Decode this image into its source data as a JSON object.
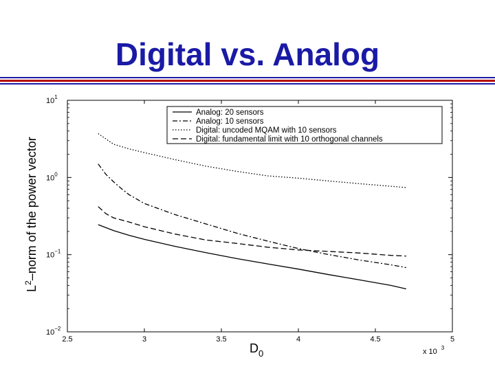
{
  "slide": {
    "title": "Digital vs. Analog",
    "accent_colors": {
      "title": "#1a1aa6",
      "rule_blue": "#1a1aa6",
      "rule_red": "#b30000"
    }
  },
  "chart_data": {
    "type": "line",
    "title": "",
    "xlabel": "D",
    "xlabel_subscript": "0",
    "x_multiplier": "x 10",
    "x_multiplier_exponent": "3",
    "ylabel": "L",
    "ylabel_superscript": "2",
    "ylabel_rest": "–norm of the power vector",
    "xlim": [
      2.5,
      5
    ],
    "ylim": [
      0.01,
      10
    ],
    "yscale": "log",
    "grid": false,
    "legend_position": "top-right",
    "x_ticks": [
      {
        "value": 2.5,
        "label": "2.5"
      },
      {
        "value": 3,
        "label": "3"
      },
      {
        "value": 3.5,
        "label": "3.5"
      },
      {
        "value": 4,
        "label": "4"
      },
      {
        "value": 4.5,
        "label": "4.5"
      },
      {
        "value": 5,
        "label": "5"
      }
    ],
    "y_ticks": [
      {
        "value": 10,
        "base": "10",
        "exp": "1"
      },
      {
        "value": 1,
        "base": "10",
        "exp": "0"
      },
      {
        "value": 0.1,
        "base": "10",
        "exp": "−1"
      },
      {
        "value": 0.01,
        "base": "10",
        "exp": "−2"
      }
    ],
    "series": [
      {
        "name": "Analog: 20 sensors",
        "dash": "solid",
        "x": [
          2.7,
          2.8,
          2.9,
          3.0,
          3.2,
          3.4,
          3.6,
          3.8,
          4.0,
          4.2,
          4.4,
          4.6,
          4.7
        ],
        "values": [
          0.245,
          0.205,
          0.178,
          0.158,
          0.128,
          0.106,
          0.089,
          0.076,
          0.065,
          0.055,
          0.047,
          0.04,
          0.036
        ]
      },
      {
        "name": "Analog: 10 sensors",
        "dash": "dashdot",
        "x": [
          2.7,
          2.75,
          2.8,
          2.85,
          2.9,
          3.0,
          3.2,
          3.4,
          3.6,
          3.8,
          4.0,
          4.2,
          4.4,
          4.6,
          4.7
        ],
        "values": [
          1.5,
          1.1,
          0.88,
          0.72,
          0.6,
          0.46,
          0.33,
          0.25,
          0.19,
          0.15,
          0.12,
          0.1,
          0.085,
          0.074,
          0.068
        ]
      },
      {
        "name": "Digital: uncoded MQAM with 10 sensors",
        "dash": "dotted",
        "x": [
          2.7,
          2.8,
          2.9,
          3.0,
          3.2,
          3.4,
          3.6,
          3.8,
          4.0,
          4.2,
          4.4,
          4.6,
          4.7
        ],
        "values": [
          3.7,
          2.7,
          2.35,
          2.1,
          1.7,
          1.4,
          1.2,
          1.05,
          0.98,
          0.9,
          0.83,
          0.77,
          0.74
        ]
      },
      {
        "name": "Digital: fundamental limit with 10 orthogonal channels",
        "dash": "dashed",
        "x": [
          2.7,
          2.75,
          2.8,
          2.9,
          3.0,
          3.2,
          3.4,
          3.6,
          3.8,
          4.0,
          4.2,
          4.4,
          4.6,
          4.7
        ],
        "values": [
          0.42,
          0.34,
          0.3,
          0.265,
          0.23,
          0.185,
          0.155,
          0.14,
          0.125,
          0.115,
          0.11,
          0.105,
          0.098,
          0.096
        ]
      }
    ]
  }
}
